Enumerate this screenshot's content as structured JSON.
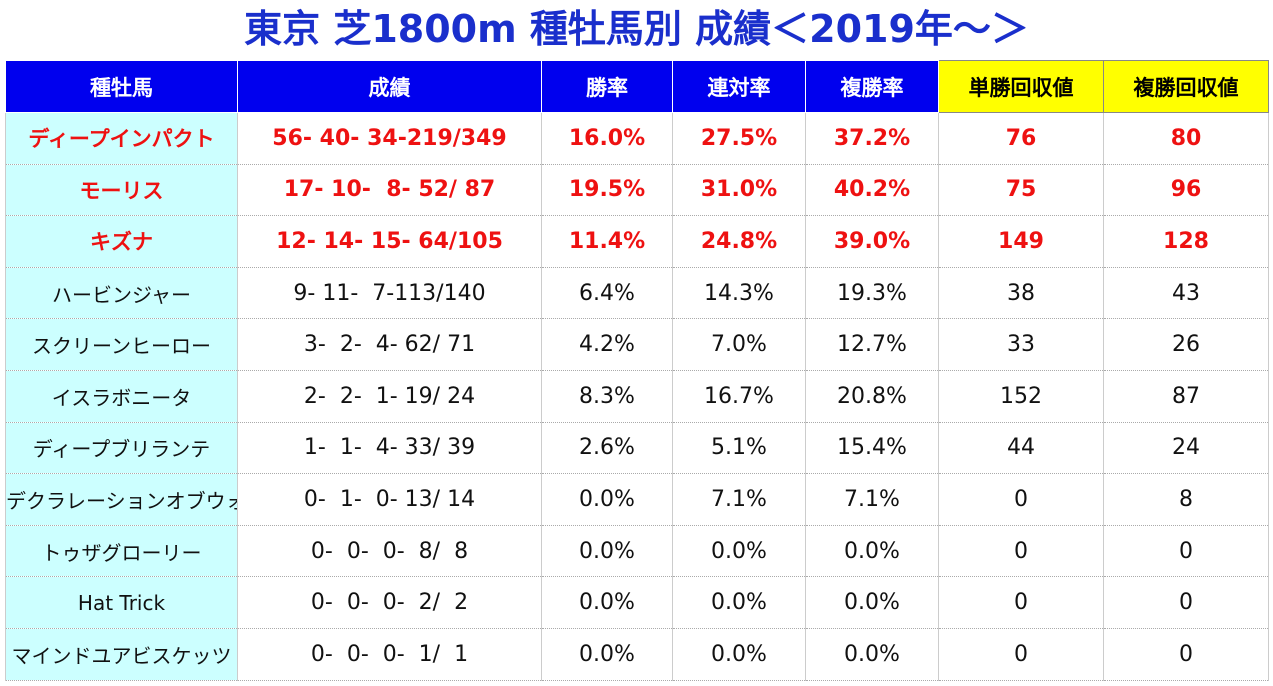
{
  "title": "東京 芝1800m 種牡馬別 成績＜2019年～＞",
  "table": {
    "headers": [
      "種牡馬",
      "成績",
      "勝率",
      "連対率",
      "複勝率",
      "単勝回収値",
      "複勝回収値"
    ],
    "rows": [
      [
        "ディープインパクト",
        "56- 40- 34-219/349",
        "16.0%",
        "27.5%",
        "37.2%",
        "76",
        "80"
      ],
      [
        "モーリス",
        "17- 10-  8- 52/ 87",
        "19.5%",
        "31.0%",
        "40.2%",
        "75",
        "96"
      ],
      [
        "キズナ",
        "12- 14- 15- 64/105",
        "11.4%",
        "24.8%",
        "39.0%",
        "149",
        "128"
      ],
      [
        "ハービンジャー",
        "9- 11-  7-113/140",
        "6.4%",
        "14.3%",
        "19.3%",
        "38",
        "43"
      ],
      [
        "スクリーンヒーロー",
        "3-  2-  4- 62/ 71",
        "4.2%",
        "7.0%",
        "12.7%",
        "33",
        "26"
      ],
      [
        "イスラボニータ",
        "2-  2-  1- 19/ 24",
        "8.3%",
        "16.7%",
        "20.8%",
        "152",
        "87"
      ],
      [
        "ディープブリランテ",
        "1-  1-  4- 33/ 39",
        "2.6%",
        "5.1%",
        "15.4%",
        "44",
        "24"
      ],
      [
        "デクラレーションオブウォー",
        "0-  1-  0- 13/ 14",
        "0.0%",
        "7.1%",
        "7.1%",
        "0",
        "8"
      ],
      [
        "トゥザグローリー",
        "0-  0-  0-  8/  8",
        "0.0%",
        "0.0%",
        "0.0%",
        "0",
        "0"
      ],
      [
        "Hat Trick",
        "0-  0-  0-  2/  2",
        "0.0%",
        "0.0%",
        "0.0%",
        "0",
        "0"
      ],
      [
        "マインドユアビスケッツ",
        "0-  0-  0-  1/  1",
        "0.0%",
        "0.0%",
        "0.0%",
        "0",
        "0"
      ]
    ]
  }
}
